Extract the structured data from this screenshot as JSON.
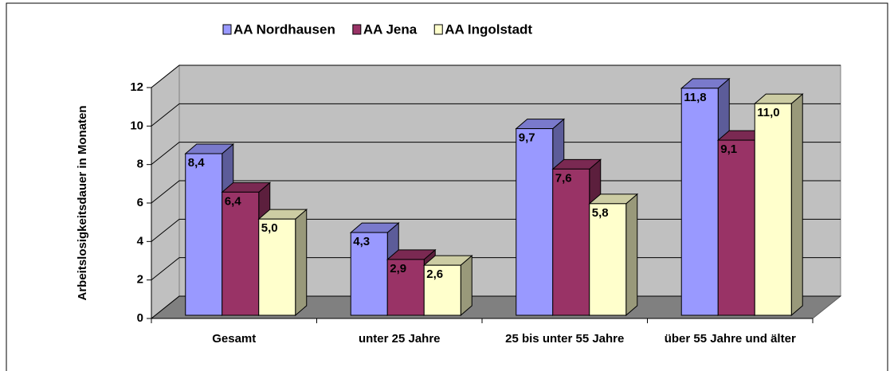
{
  "chart_data": {
    "type": "bar3d",
    "y_label": "Arbeitslosigkeitsdauer in Monaten",
    "categories": [
      "Gesamt",
      "unter 25 Jahre",
      "25 bis unter 55 Jahre",
      "über 55 Jahre und älter"
    ],
    "series": [
      {
        "name": "AA Nordhausen",
        "color": "#9999ff",
        "values": [
          8.4,
          4.3,
          9.7,
          11.8
        ],
        "value_labels": [
          "8,4",
          "4,3",
          "9,7",
          "11,8"
        ]
      },
      {
        "name": "AA Jena",
        "color": "#993366",
        "values": [
          6.4,
          2.9,
          7.6,
          9.1
        ],
        "value_labels": [
          "6,4",
          "2,9",
          "7,6",
          "9,1"
        ]
      },
      {
        "name": "AA Ingolstadt",
        "color": "#ffffcc",
        "values": [
          5.0,
          2.6,
          5.8,
          11.0
        ],
        "value_labels": [
          "5,0",
          "2,6",
          "5,8",
          "11,0"
        ]
      }
    ],
    "ylim": [
      0,
      12
    ],
    "yticks": [
      0,
      2,
      4,
      6,
      8,
      10,
      12
    ],
    "grid": true,
    "legend": "top"
  }
}
